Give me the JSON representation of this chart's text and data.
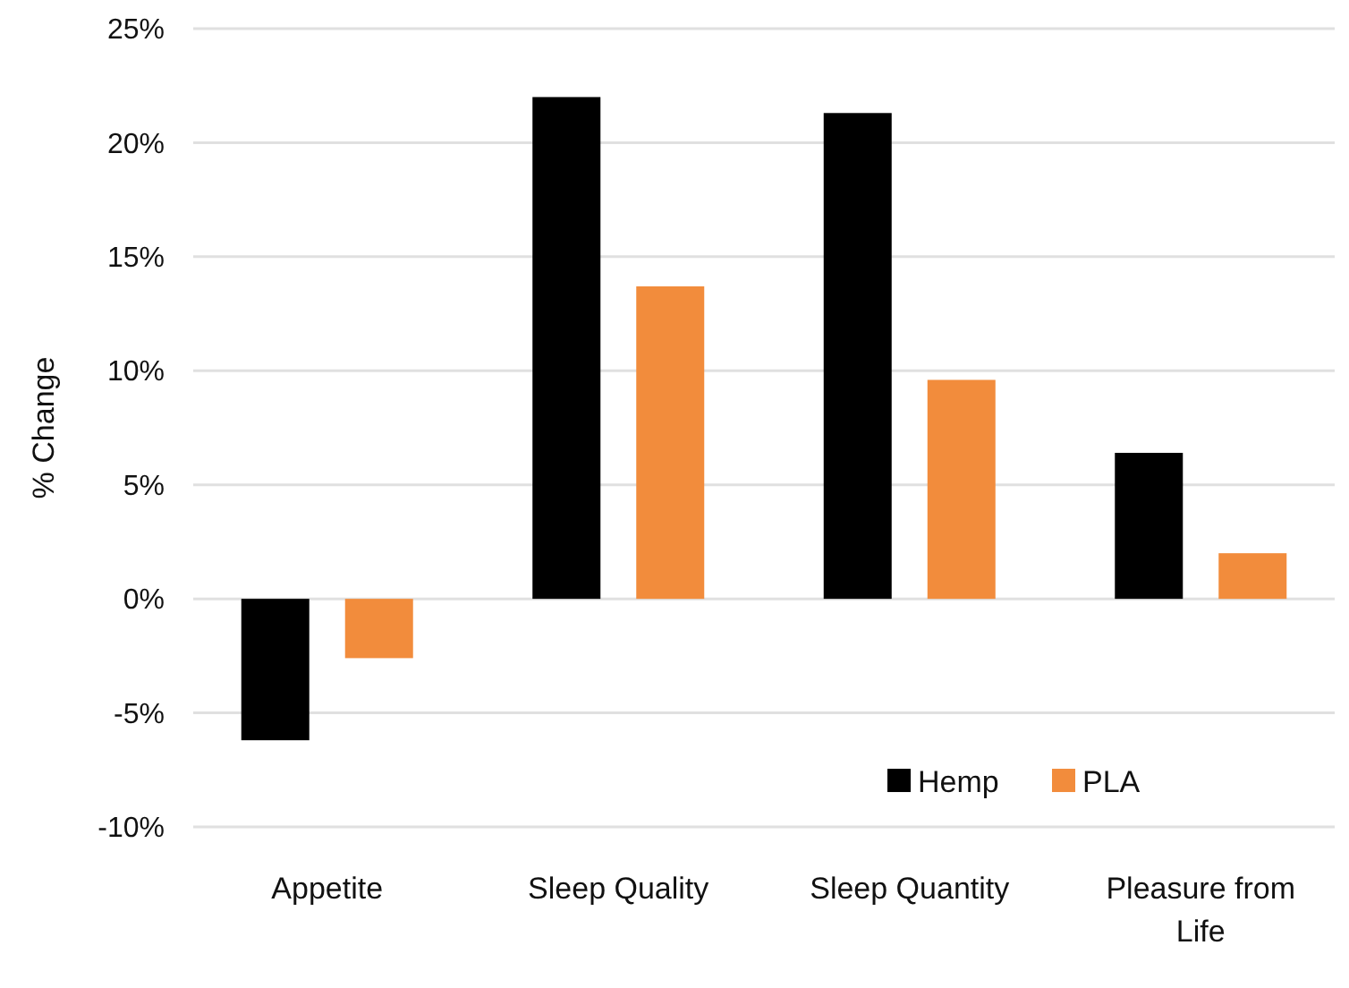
{
  "chart_data": {
    "type": "bar",
    "ylabel": "% Change",
    "categories": [
      "Appetite",
      "Sleep Quality",
      "Sleep Quantity",
      "Pleasure from Life"
    ],
    "series": [
      {
        "name": "Hemp",
        "color": "#000000",
        "values": [
          -6.2,
          22.0,
          21.3,
          6.4
        ]
      },
      {
        "name": "PLA",
        "color": "#f28c3c",
        "values": [
          -2.6,
          13.7,
          9.6,
          2.0
        ]
      }
    ],
    "ylim": [
      -10,
      25
    ],
    "yticks": [
      {
        "value": -10,
        "label": "-10%"
      },
      {
        "value": -5,
        "label": "-5%"
      },
      {
        "value": 0,
        "label": "0%"
      },
      {
        "value": 5,
        "label": "5%"
      },
      {
        "value": 10,
        "label": "10%"
      },
      {
        "value": 15,
        "label": "15%"
      },
      {
        "value": 20,
        "label": "20%"
      },
      {
        "value": 25,
        "label": "25%"
      }
    ],
    "grid": "y",
    "legend": "bottom right"
  }
}
